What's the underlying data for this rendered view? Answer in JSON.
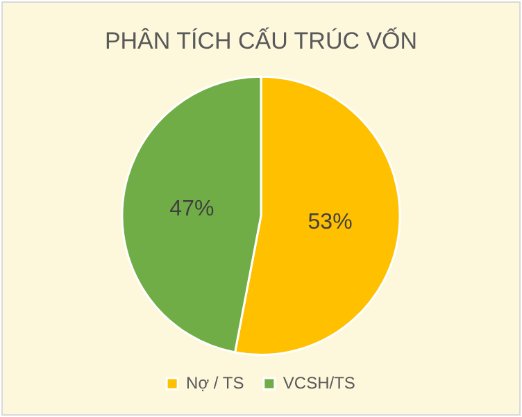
{
  "chart_data": {
    "type": "pie",
    "title": "PHÂN TÍCH CẤU TRÚC VỐN",
    "categories": [
      "Nợ / TS",
      "VCSH/TS"
    ],
    "values": [
      53,
      47
    ],
    "colors": [
      "#ffc000",
      "#70ad47"
    ],
    "value_labels": [
      "53%",
      "47%"
    ],
    "legend": "bottom"
  }
}
